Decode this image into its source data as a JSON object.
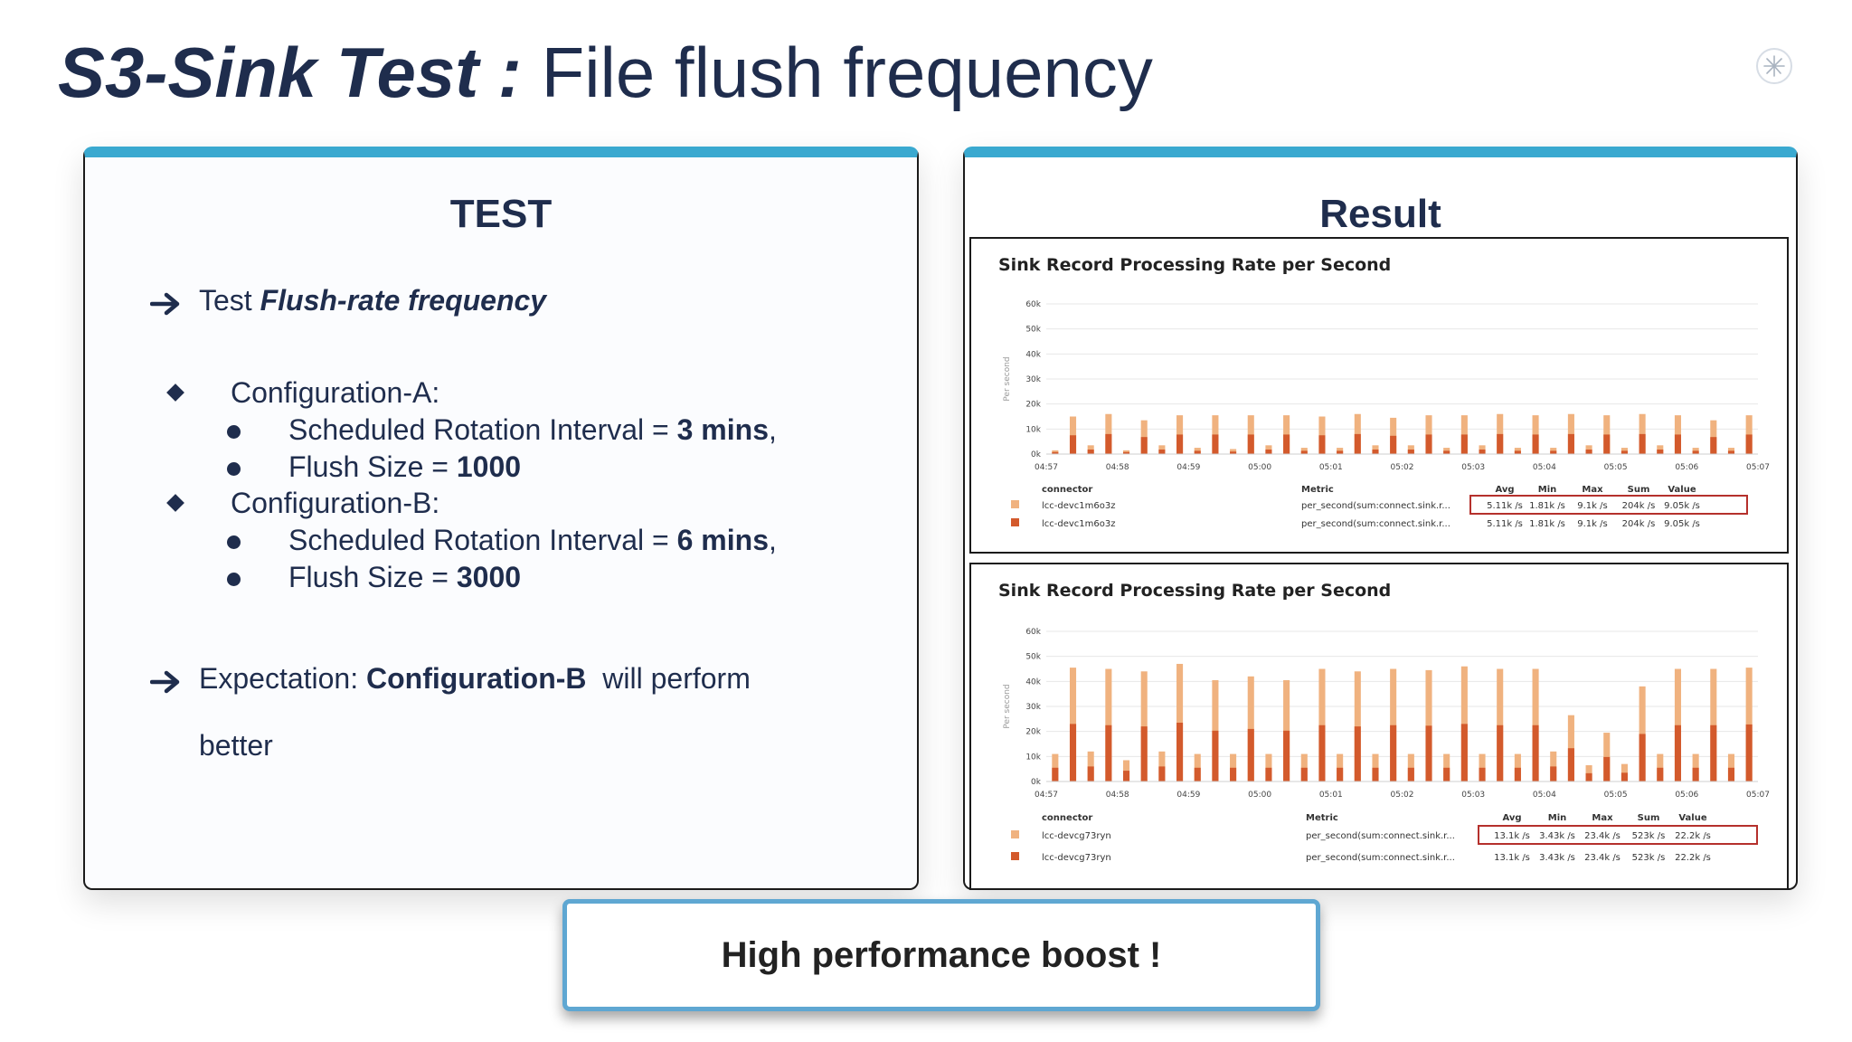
{
  "slide": {
    "title_bold": "S3-Sink Test :",
    "title_rest": " File flush frequency"
  },
  "colors": {
    "navy": "#1f2d4d",
    "panel_accent": "#3aa9d0",
    "series_light": "#f0b27f",
    "series_dark": "#d35a2c",
    "highlight_box": "#b5302c",
    "boost_border": "#5fa7d2"
  },
  "icons": {
    "arrow": "right-arrow-icon",
    "diamond": "diamond-bullet-icon",
    "dot": "dot-bullet-icon",
    "logo": "starburst-logo-icon"
  },
  "test_panel": {
    "heading": "TEST",
    "line1_prefix": "Test ",
    "line1_bold": "Flush-rate frequency",
    "config_a": {
      "label": "Configuration-A:",
      "item1_prefix": "Scheduled Rotation Interval = ",
      "item1_value": "3 mins",
      "item1_suffix": ",",
      "item2_prefix": "Flush Size = ",
      "item2_value": "1000"
    },
    "config_b": {
      "label": "Configuration-B:",
      "item1_prefix": "Scheduled Rotation Interval = ",
      "item1_value": "6 mins",
      "item1_suffix": ",",
      "item2_prefix": "Flush Size = ",
      "item2_value": "3000"
    },
    "expectation_prefix": "Expectation: ",
    "expectation_bold": "Configuration-B",
    "expectation_suffix": "  will perform",
    "expectation_line2": "better"
  },
  "result_panel": {
    "heading": "Result"
  },
  "boost_label": "High performance boost !",
  "chart_data": [
    {
      "type": "bar",
      "title": "Sink Record Processing Rate per Second",
      "ylabel": "Per second",
      "ylim": [
        0,
        60000
      ],
      "y_ticks": [
        "60k",
        "50k",
        "40k",
        "30k",
        "20k",
        "10k",
        "0k"
      ],
      "x_ticks": [
        "04:57",
        "04:58",
        "04:59",
        "05:00",
        "05:01",
        "05:02",
        "05:03",
        "05:04",
        "05:05",
        "05:06",
        "05:07"
      ],
      "grid": true,
      "series": [
        {
          "values": [
            1500,
            15000,
            3500,
            16000,
            1500,
            13500,
            3500,
            15500,
            2500,
            15500,
            2000,
            15500,
            3500,
            15500,
            2500,
            15000,
            2500,
            16000,
            3500,
            14500,
            3500,
            15500,
            2500,
            15500,
            3500,
            16000,
            2500,
            15500,
            2500,
            16000,
            3500,
            15500,
            2500,
            16000,
            3500,
            15500,
            2500,
            13500,
            2500,
            15500
          ]
        },
        {
          "values": [
            800,
            7500,
            1800,
            8000,
            800,
            6800,
            1800,
            7800,
            1300,
            7800,
            1000,
            7800,
            1800,
            7800,
            1300,
            7500,
            1300,
            8000,
            1800,
            7300,
            1800,
            7800,
            1300,
            7800,
            1800,
            8000,
            1300,
            7800,
            1300,
            8000,
            1800,
            7800,
            1300,
            8000,
            1800,
            7800,
            1300,
            6800,
            1300,
            7800
          ]
        }
      ],
      "legend": {
        "headers": [
          "connector",
          "Metric",
          "Avg",
          "Min",
          "Max",
          "Sum",
          "Value"
        ],
        "rows": [
          [
            "lcc-devc1m6o3z",
            "per_second(sum:connect.sink.r...",
            "5.11k /s",
            "1.81k /s",
            "9.1k /s",
            "204k /s",
            "9.05k /s"
          ],
          [
            "lcc-devc1m6o3z",
            "per_second(sum:connect.sink.r...",
            "5.11k /s",
            "1.81k /s",
            "9.1k /s",
            "204k /s",
            "9.05k /s"
          ]
        ]
      }
    },
    {
      "type": "bar",
      "title": "Sink Record Processing Rate per Second",
      "ylabel": "Per second",
      "ylim": [
        0,
        60000
      ],
      "y_ticks": [
        "60k",
        "50k",
        "40k",
        "30k",
        "20k",
        "10k",
        "0k"
      ],
      "x_ticks": [
        "04:57",
        "04:58",
        "04:59",
        "05:00",
        "05:01",
        "05:02",
        "05:03",
        "05:04",
        "05:05",
        "05:06",
        "05:07"
      ],
      "grid": true,
      "series": [
        {
          "values": [
            11000,
            45500,
            12000,
            45000,
            8500,
            44000,
            12000,
            47000,
            11000,
            40500,
            11000,
            42000,
            11000,
            40500,
            11000,
            45000,
            11000,
            44000,
            11000,
            45000,
            11000,
            44500,
            11000,
            46000,
            11000,
            45000,
            11000,
            45000,
            12000,
            26500,
            6500,
            19500,
            7000,
            38000,
            11000,
            45000,
            11000,
            45000,
            11000,
            45500
          ]
        },
        {
          "values": [
            5500,
            23000,
            6000,
            22500,
            4300,
            22000,
            6000,
            23500,
            5500,
            20300,
            5500,
            21000,
            5500,
            20300,
            5500,
            22500,
            5500,
            22000,
            5500,
            22500,
            5500,
            22300,
            5500,
            23000,
            5500,
            22500,
            5500,
            22500,
            6000,
            13300,
            3300,
            9800,
            3500,
            19000,
            5500,
            22500,
            5500,
            22500,
            5500,
            22800
          ]
        }
      ],
      "legend": {
        "headers": [
          "connector",
          "Metric",
          "Avg",
          "Min",
          "Max",
          "Sum",
          "Value"
        ],
        "rows": [
          [
            "lcc-devcg73ryn",
            "per_second(sum:connect.sink.r...",
            "13.1k /s",
            "3.43k /s",
            "23.4k /s",
            "523k /s",
            "22.2k /s"
          ],
          [
            "lcc-devcg73ryn",
            "per_second(sum:connect.sink.r...",
            "13.1k /s",
            "3.43k /s",
            "23.4k /s",
            "523k /s",
            "22.2k /s"
          ]
        ]
      }
    }
  ]
}
